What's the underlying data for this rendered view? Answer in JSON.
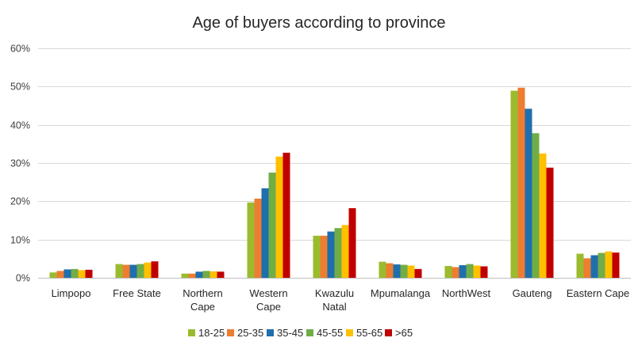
{
  "chart_data": {
    "type": "bar",
    "title": "Age of buyers according to province",
    "xlabel": "",
    "ylabel": "",
    "ylim": [
      0,
      0.6
    ],
    "yticks": [
      0,
      0.1,
      0.2,
      0.3,
      0.4,
      0.5,
      0.6
    ],
    "ytick_labels": [
      "0%",
      "10%",
      "20%",
      "30%",
      "40%",
      "50%",
      "60%"
    ],
    "grid": true,
    "legend_position": "bottom",
    "categories": [
      [
        "Limpopo"
      ],
      [
        "Free State"
      ],
      [
        "Northern",
        "Cape"
      ],
      [
        "Western",
        "Cape"
      ],
      [
        "Kwazulu",
        "Natal"
      ],
      [
        "Mpumalanga"
      ],
      [
        "NorthWest"
      ],
      [
        "Gauteng"
      ],
      [
        "Eastern Cape"
      ]
    ],
    "series": [
      {
        "name": "18-25",
        "color": "#9bbb2e",
        "values": [
          0.014,
          0.036,
          0.011,
          0.197,
          0.11,
          0.042,
          0.031,
          0.489,
          0.063
        ]
      },
      {
        "name": "25-35",
        "color": "#ed7d31",
        "values": [
          0.018,
          0.034,
          0.011,
          0.207,
          0.11,
          0.038,
          0.028,
          0.497,
          0.051
        ]
      },
      {
        "name": "35-45",
        "color": "#1f6fad",
        "values": [
          0.022,
          0.034,
          0.016,
          0.234,
          0.121,
          0.035,
          0.033,
          0.442,
          0.059
        ]
      },
      {
        "name": "45-55",
        "color": "#70ad47",
        "values": [
          0.023,
          0.036,
          0.018,
          0.275,
          0.13,
          0.034,
          0.036,
          0.378,
          0.065
        ]
      },
      {
        "name": "55-65",
        "color": "#ffc000",
        "values": [
          0.02,
          0.04,
          0.017,
          0.317,
          0.138,
          0.032,
          0.032,
          0.325,
          0.069
        ]
      },
      {
        "name": ">65",
        "color": "#c00000",
        "values": [
          0.021,
          0.043,
          0.016,
          0.327,
          0.182,
          0.023,
          0.03,
          0.288,
          0.066
        ]
      }
    ]
  }
}
